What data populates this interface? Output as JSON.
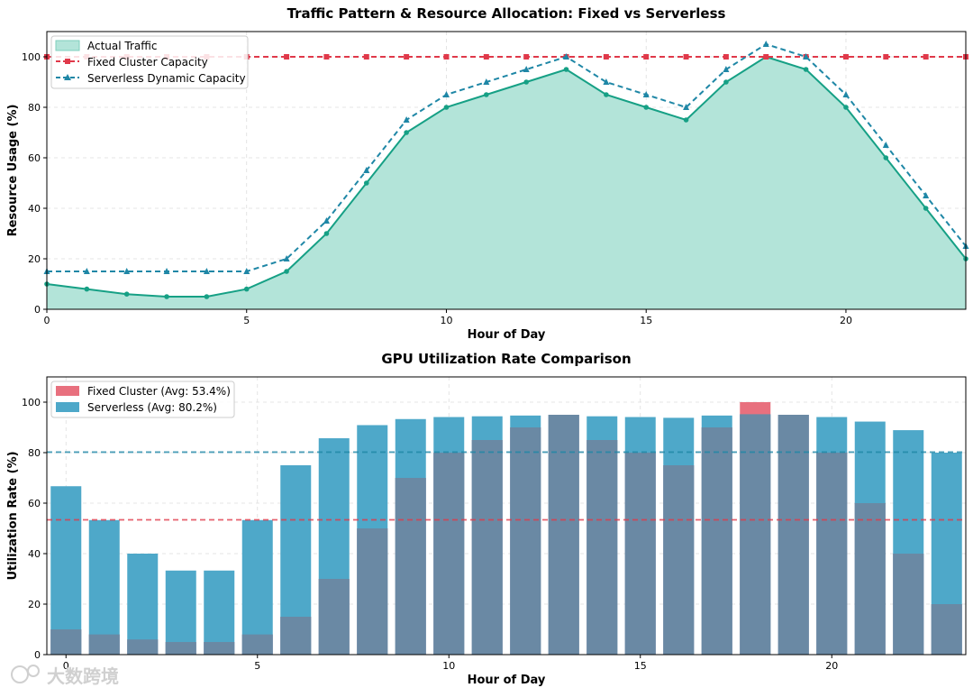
{
  "chart_data": [
    {
      "type": "line",
      "title": "Traffic Pattern & Resource Allocation: Fixed vs Serverless",
      "xlabel": "Hour of Day",
      "ylabel": "Resource Usage (%)",
      "xlim": [
        0,
        23
      ],
      "ylim": [
        0,
        110
      ],
      "xticks": [
        0,
        5,
        10,
        15,
        20
      ],
      "yticks": [
        0,
        20,
        40,
        60,
        80,
        100
      ],
      "grid": true,
      "legend_position": "top-left",
      "x": [
        0,
        1,
        2,
        3,
        4,
        5,
        6,
        7,
        8,
        9,
        10,
        11,
        12,
        13,
        14,
        15,
        16,
        17,
        18,
        19,
        20,
        21,
        22,
        23
      ],
      "series": [
        {
          "name": "Actual Traffic",
          "style": "filled-area-with-line",
          "color": "#16a085",
          "fill": "#b3e4d9",
          "values": [
            10,
            8,
            6,
            5,
            5,
            8,
            15,
            30,
            50,
            70,
            80,
            85,
            90,
            95,
            85,
            80,
            75,
            90,
            100,
            95,
            80,
            60,
            40,
            20
          ]
        },
        {
          "name": "Fixed Cluster Capacity",
          "style": "dashed-square-markers",
          "color": "#e0394a",
          "values": [
            100,
            100,
            100,
            100,
            100,
            100,
            100,
            100,
            100,
            100,
            100,
            100,
            100,
            100,
            100,
            100,
            100,
            100,
            100,
            100,
            100,
            100,
            100,
            100
          ]
        },
        {
          "name": "Serverless Dynamic Capacity",
          "style": "dashed-triangle-markers",
          "color": "#1f87a6",
          "values": [
            15,
            15,
            15,
            15,
            15,
            15,
            20,
            35,
            55,
            75,
            85,
            90,
            95,
            100,
            90,
            85,
            80,
            95,
            105,
            100,
            85,
            65,
            45,
            25
          ]
        }
      ]
    },
    {
      "type": "bar",
      "title": "GPU Utilization Rate Comparison",
      "xlabel": "Hour of Day",
      "ylabel": "Utilization Rate (%)",
      "xlim": [
        -0.5,
        23.5
      ],
      "ylim": [
        0,
        110
      ],
      "xticks": [
        0,
        5,
        10,
        15,
        20
      ],
      "yticks": [
        0,
        20,
        40,
        60,
        80,
        100
      ],
      "grid": true,
      "legend_position": "top-left",
      "categories": [
        0,
        1,
        2,
        3,
        4,
        5,
        6,
        7,
        8,
        9,
        10,
        11,
        12,
        13,
        14,
        15,
        16,
        17,
        18,
        19,
        20,
        21,
        22,
        23
      ],
      "series": [
        {
          "name": "Fixed Cluster (Avg: 53.4%)",
          "color": "#e8707e",
          "average": 53.4,
          "values": [
            10,
            8,
            6,
            5,
            5,
            8,
            15,
            30,
            50,
            70,
            80,
            85,
            90,
            95,
            85,
            80,
            75,
            90,
            100,
            95,
            80,
            60,
            40,
            20
          ]
        },
        {
          "name": "Serverless (Avg: 80.2%)",
          "color": "#4ea8c9",
          "average": 80.2,
          "values": [
            66.7,
            53.3,
            40,
            33.3,
            33.3,
            53.3,
            75,
            85.7,
            90.9,
            93.3,
            94.1,
            94.4,
            94.7,
            95,
            94.4,
            94.1,
            93.8,
            94.7,
            95.2,
            95,
            94.1,
            92.3,
            88.9,
            80
          ]
        }
      ]
    }
  ],
  "watermark": {
    "text": "大数跨境"
  }
}
